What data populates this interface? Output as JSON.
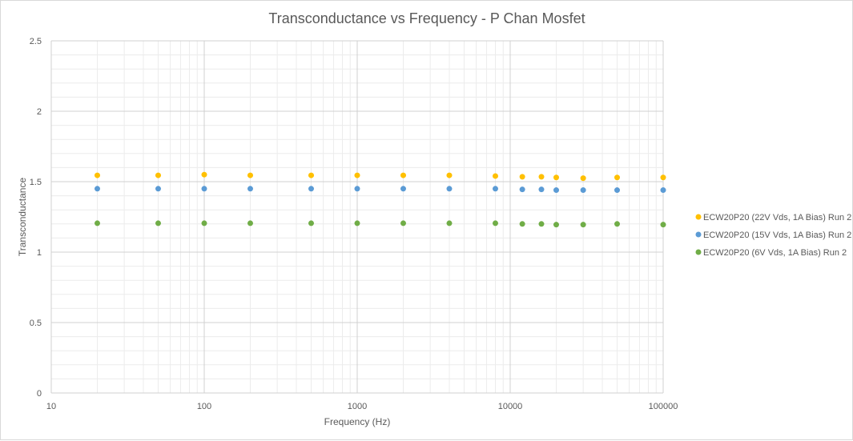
{
  "chart_data": {
    "type": "scatter",
    "title": "Transconductance vs Frequency - P Chan Mosfet",
    "xlabel": "Frequency (Hz)",
    "ylabel": "Transconductance",
    "x_scale": "log",
    "xlim": [
      10,
      100000
    ],
    "ylim": [
      0,
      2.5
    ],
    "x_ticks": [
      "10",
      "100",
      "1000",
      "10000",
      "100000"
    ],
    "y_ticks": [
      "0",
      "0.5",
      "1",
      "1.5",
      "2",
      "2.5"
    ],
    "grid": true,
    "minor_grid": true,
    "legend_position": "right",
    "series": [
      {
        "name": "ECW20P20 (22V Vds, 1A Bias) Run 2",
        "color": "#ffc000",
        "x": [
          20,
          50,
          100,
          200,
          500,
          1000,
          2000,
          4000,
          8000,
          12000,
          16000,
          20000,
          30000,
          50000,
          100000
        ],
        "y": [
          1.545,
          1.545,
          1.55,
          1.545,
          1.545,
          1.545,
          1.545,
          1.545,
          1.54,
          1.535,
          1.535,
          1.53,
          1.525,
          1.53,
          1.53
        ]
      },
      {
        "name": "ECW20P20 (15V Vds, 1A Bias) Run 2",
        "color": "#5b9bd5",
        "x": [
          20,
          50,
          100,
          200,
          500,
          1000,
          2000,
          4000,
          8000,
          12000,
          16000,
          20000,
          30000,
          50000,
          100000
        ],
        "y": [
          1.45,
          1.45,
          1.45,
          1.45,
          1.45,
          1.45,
          1.45,
          1.45,
          1.45,
          1.445,
          1.445,
          1.44,
          1.44,
          1.44,
          1.44
        ]
      },
      {
        "name": "ECW20P20 (6V Vds, 1A Bias) Run 2",
        "color": "#70ad47",
        "x": [
          20,
          50,
          100,
          200,
          500,
          1000,
          2000,
          4000,
          8000,
          12000,
          16000,
          20000,
          30000,
          50000,
          100000
        ],
        "y": [
          1.205,
          1.205,
          1.205,
          1.205,
          1.205,
          1.205,
          1.205,
          1.205,
          1.205,
          1.2,
          1.2,
          1.195,
          1.195,
          1.2,
          1.195
        ]
      }
    ]
  }
}
